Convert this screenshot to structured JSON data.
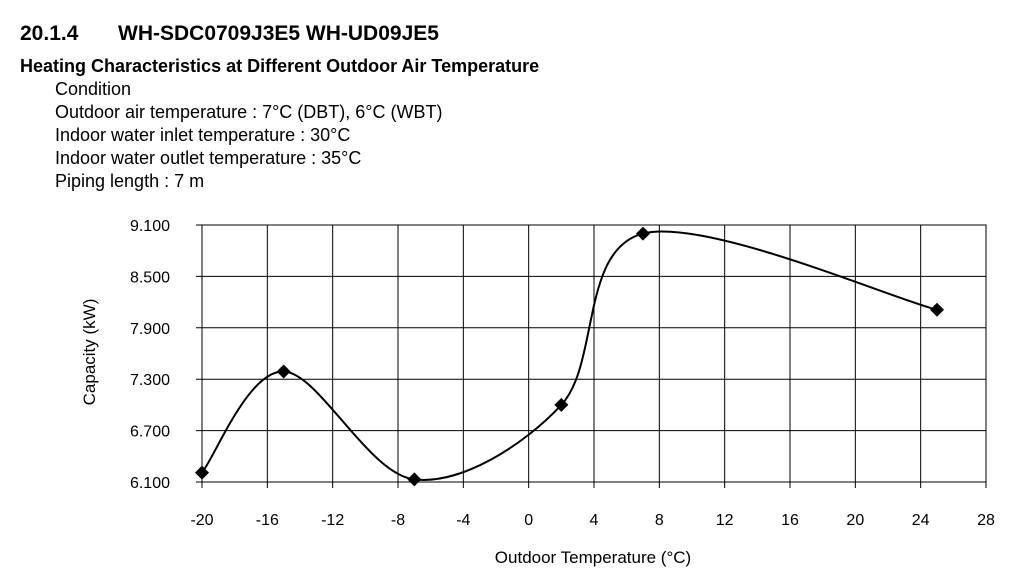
{
  "header": {
    "section_number": "20.1.4",
    "model": "WH-SDC0709J3E5 WH-UD09JE5",
    "subtitle": "Heating Characteristics at Different Outdoor Air Temperature"
  },
  "condition": {
    "heading": "Condition",
    "lines": [
      "Outdoor air temperature : 7°C (DBT), 6°C (WBT)",
      "Indoor water inlet temperature : 30°C",
      "Indoor water outlet temperature : 35°C",
      "Piping length : 7 m"
    ]
  },
  "chart_data": {
    "type": "scatter",
    "title": "",
    "xlabel": "Outdoor Temperature (°C)",
    "ylabel": "Capacity (kW)",
    "xlim": [
      -20,
      28
    ],
    "ylim": [
      6.1,
      9.1
    ],
    "xticks": [
      -20,
      -16,
      -12,
      -8,
      -4,
      0,
      4,
      8,
      12,
      16,
      20,
      24,
      28
    ],
    "xtick_labels": [
      "-20",
      "-16",
      "-12",
      "-8",
      "-4",
      "0",
      "4",
      "8",
      "12",
      "16",
      "20",
      "24",
      "28"
    ],
    "yticks": [
      6.1,
      6.7,
      7.3,
      7.9,
      8.5,
      9.1
    ],
    "ytick_labels": [
      "6.100",
      "6.700",
      "7.300",
      "7.900",
      "8.500",
      "9.100"
    ],
    "grid": true,
    "series": [
      {
        "marker": "diamond",
        "line": "smooth",
        "x": [
          -20,
          -15,
          -7,
          2,
          7,
          25
        ],
        "y": [
          6.21,
          7.39,
          6.13,
          7.0,
          9.0,
          8.11
        ]
      }
    ]
  }
}
